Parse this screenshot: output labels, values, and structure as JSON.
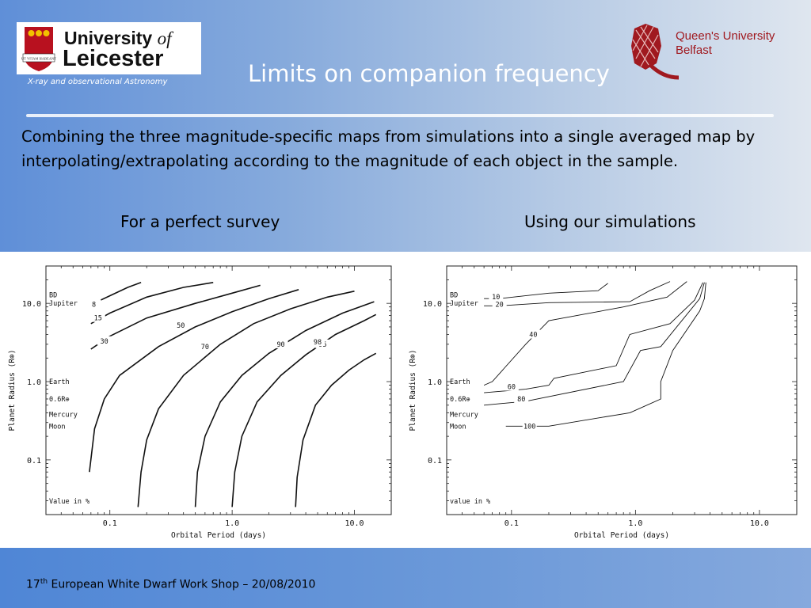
{
  "header": {
    "leicester_logo": {
      "line1": "University",
      "of": "of",
      "line2": "Leicester",
      "shield_text": "UT VITAM HABEANT"
    },
    "leicester_caption": "X-ray and observational Astronomy",
    "title": "Limits on companion frequency",
    "qub_logo": {
      "line1": "Queen's University",
      "line2": "Belfast",
      "colors": {
        "red": "#a0191f",
        "grey": "#8a8f96"
      }
    }
  },
  "body": {
    "paragraph": "Combining the three magnitude-specific maps from simulations into a single averaged map by interpolating/extrapolating according to the magnitude of each object in the sample.",
    "left_label": "For a perfect survey",
    "right_label": "Using our simulations"
  },
  "footer": {
    "ordinal_num": "17",
    "ordinal_sup": "th",
    "text": " European White Dwarf Work Shop – 20/08/2010"
  },
  "chart_data": [
    {
      "type": "line",
      "title": "",
      "xlabel": "Orbital Period (days)",
      "ylabel": "Planet Radius (R⊕)",
      "xscale": "log",
      "yscale": "log",
      "xlim": [
        0.03,
        20
      ],
      "ylim": [
        0.02,
        30
      ],
      "xticks": [
        {
          "v": 0.1,
          "label": "0.1"
        },
        {
          "v": 1,
          "label": "1.0"
        },
        {
          "v": 10,
          "label": "10.0"
        }
      ],
      "yticks": [
        {
          "v": 0.1,
          "label": "0.1"
        },
        {
          "v": 1,
          "label": "1.0"
        },
        {
          "v": 10,
          "label": "10.0"
        }
      ],
      "ref_labels": [
        {
          "text": "BD",
          "y": 12.8
        },
        {
          "text": "Jupiter",
          "y": 10.0
        },
        {
          "text": "Earth",
          "y": 1.0
        },
        {
          "text": "0.6R⊕",
          "y": 0.6
        },
        {
          "text": "Mercury",
          "y": 0.38
        },
        {
          "text": "Moon",
          "y": 0.27
        }
      ],
      "note": "Value in %",
      "series": [
        {
          "name": "8",
          "values": [
            [
              0.07,
              9.6
            ],
            [
              0.1,
              12.5
            ],
            [
              0.14,
              16.0
            ],
            [
              0.18,
              18.5
            ]
          ],
          "label_at": [
            0.074,
            9.7
          ]
        },
        {
          "name": "15",
          "values": [
            [
              0.07,
              5.5
            ],
            [
              0.1,
              7.5
            ],
            [
              0.2,
              12.0
            ],
            [
              0.4,
              16.0
            ],
            [
              0.7,
              18.5
            ]
          ],
          "label_at": [
            0.08,
            6.5
          ]
        },
        {
          "name": "30",
          "values": [
            [
              0.07,
              2.6
            ],
            [
              0.1,
              3.8
            ],
            [
              0.2,
              6.5
            ],
            [
              0.5,
              10.0
            ],
            [
              1.0,
              13.5
            ],
            [
              1.7,
              17.0
            ]
          ],
          "label_at": [
            0.09,
            3.3
          ]
        },
        {
          "name": "50",
          "values": [
            [
              0.068,
              0.07
            ],
            [
              0.075,
              0.25
            ],
            [
              0.09,
              0.6
            ],
            [
              0.12,
              1.2
            ],
            [
              0.25,
              2.8
            ],
            [
              0.5,
              5.0
            ],
            [
              1.0,
              7.8
            ],
            [
              2.0,
              11.5
            ],
            [
              3.5,
              15.0
            ]
          ],
          "label_at": [
            0.38,
            5.2
          ]
        },
        {
          "name": "70",
          "values": [
            [
              0.17,
              0.025
            ],
            [
              0.18,
              0.07
            ],
            [
              0.2,
              0.18
            ],
            [
              0.25,
              0.45
            ],
            [
              0.4,
              1.2
            ],
            [
              0.8,
              3.0
            ],
            [
              1.5,
              5.5
            ],
            [
              3.0,
              8.5
            ],
            [
              6.0,
              12.0
            ],
            [
              10.0,
              14.3
            ]
          ],
          "label_at": [
            0.6,
            2.8
          ]
        },
        {
          "name": "90",
          "values": [
            [
              0.5,
              0.025
            ],
            [
              0.52,
              0.07
            ],
            [
              0.6,
              0.2
            ],
            [
              0.8,
              0.55
            ],
            [
              1.2,
              1.2
            ],
            [
              2.0,
              2.3
            ],
            [
              4.0,
              4.5
            ],
            [
              8.0,
              7.5
            ],
            [
              14.5,
              10.5
            ]
          ],
          "label_at": [
            2.5,
            3.0
          ]
        },
        {
          "name": "95",
          "values": [
            [
              1.0,
              0.025
            ],
            [
              1.05,
              0.07
            ],
            [
              1.2,
              0.2
            ],
            [
              1.6,
              0.55
            ],
            [
              2.5,
              1.2
            ],
            [
              4.0,
              2.2
            ],
            [
              7.0,
              4.0
            ],
            [
              12.0,
              6.0
            ],
            [
              15.0,
              7.2
            ]
          ],
          "label_at": [
            5.5,
            3.0
          ]
        },
        {
          "name": "98",
          "values": [
            [
              3.3,
              0.025
            ],
            [
              3.4,
              0.06
            ],
            [
              3.8,
              0.18
            ],
            [
              4.8,
              0.5
            ],
            [
              6.5,
              0.9
            ],
            [
              9.0,
              1.4
            ],
            [
              12.0,
              1.9
            ],
            [
              15.0,
              2.3
            ]
          ],
          "label_at": [
            5.0,
            3.2
          ]
        }
      ]
    },
    {
      "type": "line",
      "title": "",
      "xlabel": "Orbital Period (days)",
      "ylabel": "Planet Radius (R⊕)",
      "xscale": "log",
      "yscale": "log",
      "xlim": [
        0.03,
        20
      ],
      "ylim": [
        0.02,
        30
      ],
      "xticks": [
        {
          "v": 0.1,
          "label": "0.1"
        },
        {
          "v": 1,
          "label": "1.0"
        },
        {
          "v": 10,
          "label": "10.0"
        }
      ],
      "yticks": [
        {
          "v": 0.1,
          "label": "0.1"
        },
        {
          "v": 1,
          "label": "1.0"
        },
        {
          "v": 10,
          "label": "10.0"
        }
      ],
      "ref_labels": [
        {
          "text": "BD",
          "y": 12.8
        },
        {
          "text": "Jupiter",
          "y": 10.0
        },
        {
          "text": "Earth",
          "y": 1.0
        },
        {
          "text": "0.6R⊕",
          "y": 0.6
        },
        {
          "text": "Mercury",
          "y": 0.38
        },
        {
          "text": "Moon",
          "y": 0.27
        }
      ],
      "note": "value in %",
      "series": [
        {
          "name": "10",
          "values": [
            [
              0.06,
              11.5
            ],
            [
              0.08,
              11.5
            ],
            [
              0.2,
              13.5
            ],
            [
              0.5,
              14.5
            ],
            [
              0.6,
              18.0
            ]
          ],
          "label_at": [
            0.075,
            12.1
          ]
        },
        {
          "name": "20",
          "values": [
            [
              0.06,
              9.3
            ],
            [
              0.08,
              9.3
            ],
            [
              0.2,
              10.2
            ],
            [
              0.9,
              10.5
            ],
            [
              1.3,
              14.5
            ],
            [
              1.9,
              19.0
            ]
          ],
          "label_at": [
            0.08,
            9.7
          ]
        },
        {
          "name": "40",
          "values": [
            [
              0.06,
              0.9
            ],
            [
              0.07,
              1.0
            ],
            [
              0.13,
              3.0
            ],
            [
              0.2,
              6.0
            ],
            [
              0.8,
              9.0
            ],
            [
              1.8,
              12.0
            ],
            [
              2.6,
              19.0
            ]
          ],
          "label_at": [
            0.15,
            4.0
          ]
        },
        {
          "name": "60",
          "values": [
            [
              0.06,
              0.72
            ],
            [
              0.13,
              0.8
            ],
            [
              0.2,
              0.9
            ],
            [
              0.22,
              1.1
            ],
            [
              0.7,
              1.6
            ],
            [
              0.9,
              4.0
            ],
            [
              1.9,
              5.5
            ],
            [
              3.0,
              11.0
            ],
            [
              3.5,
              18.5
            ]
          ],
          "label_at": [
            0.1,
            0.86
          ]
        },
        {
          "name": "80",
          "values": [
            [
              0.06,
              0.5
            ],
            [
              0.13,
              0.56
            ],
            [
              0.8,
              1.0
            ],
            [
              1.1,
              2.5
            ],
            [
              1.6,
              2.8
            ],
            [
              3.3,
              11.5
            ],
            [
              3.6,
              18.5
            ]
          ],
          "label_at": [
            0.12,
            0.6
          ]
        },
        {
          "name": "100",
          "values": [
            [
              0.09,
              0.27
            ],
            [
              0.2,
              0.27
            ],
            [
              0.9,
              0.4
            ],
            [
              1.6,
              0.6
            ],
            [
              1.6,
              1.0
            ],
            [
              2.0,
              2.5
            ],
            [
              3.3,
              8.0
            ],
            [
              3.6,
              11.5
            ],
            [
              3.7,
              18.5
            ]
          ],
          "label_at": [
            0.14,
            0.27
          ]
        }
      ]
    }
  ]
}
